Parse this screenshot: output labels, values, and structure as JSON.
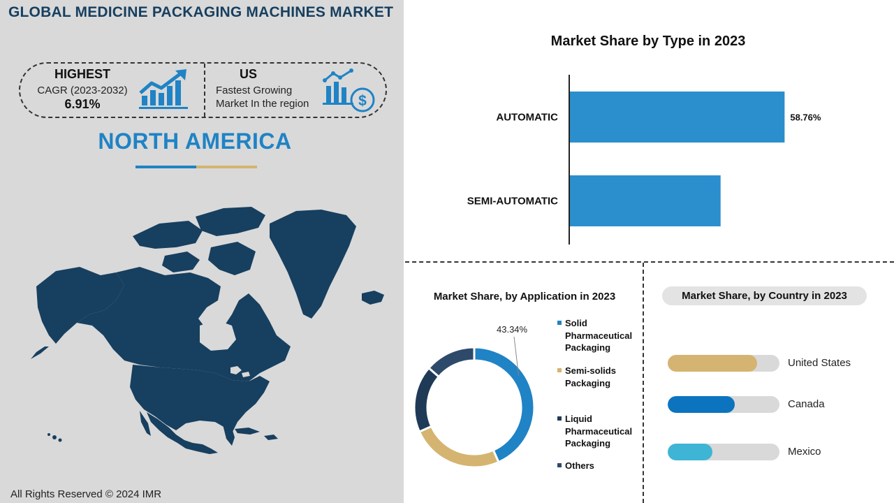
{
  "header": {
    "title": "GLOBAL MEDICINE PACKAGING MACHINES MARKET"
  },
  "stats": {
    "highest_heading": "HIGHEST",
    "cagr_label": "CAGR (2023-2032)",
    "cagr_value": "6.91%",
    "leader_heading": "US",
    "leader_line1": "Fastest Growing",
    "leader_line2": "Market In the region"
  },
  "region": {
    "name": "NORTH AMERICA"
  },
  "footer": {
    "copyright": "All Rights Reserved © 2024 IMR"
  },
  "colors": {
    "navy": "#173f5f",
    "blue": "#1f83c5",
    "bar_blue": "#2b8fcd",
    "gold": "#d4b470",
    "dark_navy": "#1f3a57",
    "slate": "#2e4a6b",
    "country_us": "#d4b470",
    "country_canada": "#0c74bf",
    "country_mexico": "#3fb5d6",
    "track": "#d9d9d9"
  },
  "chart_data": [
    {
      "type": "bar",
      "orientation": "horizontal",
      "title": "Market Share by Type in 2023",
      "categories": [
        "AUTOMATIC",
        "SEMI-AUTOMATIC"
      ],
      "values": [
        58.76,
        41.24
      ],
      "data_labels": [
        "58.76%",
        ""
      ],
      "xlim": [
        0,
        65
      ]
    },
    {
      "type": "pie",
      "title": "Market Share, by Application in 2023",
      "categories": [
        "Solid Pharmaceutical Packaging",
        "Semi-solids Packaging",
        "Liquid Pharmaceutical Packaging",
        "Others"
      ],
      "legend_lines": [
        [
          "Solid",
          "Pharmaceutical",
          "Packaging"
        ],
        [
          "Semi-solids",
          "Packaging"
        ],
        [
          "Liquid",
          "Pharmaceutical",
          "Packaging"
        ],
        [
          "Others"
        ]
      ],
      "values": [
        43.34,
        25,
        18,
        13.66
      ],
      "data_labels": [
        "43.34%",
        "",
        "",
        ""
      ],
      "colors": [
        "#1f83c5",
        "#d4b470",
        "#1f3a57",
        "#2e4a6b"
      ],
      "legend_position": "right"
    },
    {
      "type": "bar",
      "orientation": "horizontal",
      "title": "Market Share, by Country in 2023",
      "categories": [
        "United States",
        "Canada",
        "Mexico"
      ],
      "values": [
        80,
        60,
        40
      ],
      "colors": [
        "#d4b470",
        "#0c74bf",
        "#3fb5d6"
      ],
      "xlim": [
        0,
        100
      ]
    }
  ]
}
